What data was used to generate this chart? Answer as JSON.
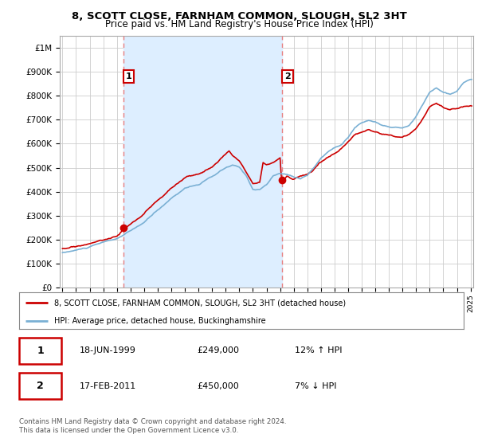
{
  "title": "8, SCOTT CLOSE, FARNHAM COMMON, SLOUGH, SL2 3HT",
  "subtitle": "Price paid vs. HM Land Registry's House Price Index (HPI)",
  "background_color": "#ffffff",
  "plot_bg_color": "#ffffff",
  "grid_color": "#cccccc",
  "shade_color": "#ddeeff",
  "ylim": [
    0,
    1050000
  ],
  "yticks": [
    0,
    100000,
    200000,
    300000,
    400000,
    500000,
    600000,
    700000,
    800000,
    900000,
    1000000
  ],
  "ytick_labels": [
    "£0",
    "£100K",
    "£200K",
    "£300K",
    "£400K",
    "£500K",
    "£600K",
    "£700K",
    "£800K",
    "£900K",
    "£1M"
  ],
  "red_line_color": "#cc0000",
  "blue_line_color": "#7ab0d4",
  "marker1_date": 1999.46,
  "marker1_value": 249000,
  "marker2_date": 2011.12,
  "marker2_value": 450000,
  "vline_color": "#e88080",
  "footer": "Contains HM Land Registry data © Crown copyright and database right 2024.\nThis data is licensed under the Open Government Licence v3.0."
}
